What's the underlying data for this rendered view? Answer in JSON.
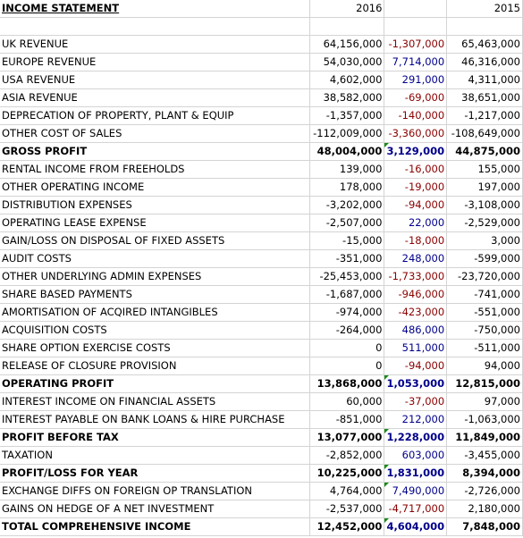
{
  "sheet": {
    "title": "INCOME STATEMENT",
    "year_current": "2016",
    "year_prior": "2015",
    "rows": [
      {
        "label": "UK REVENUE",
        "y2016": "64,156,000",
        "diff": "-1,307,000",
        "y2015": "65,463,000",
        "bold": false,
        "dir": "neg",
        "mark": false
      },
      {
        "label": "EUROPE REVENUE",
        "y2016": "54,030,000",
        "diff": "7,714,000",
        "y2015": "46,316,000",
        "bold": false,
        "dir": "pos",
        "mark": false
      },
      {
        "label": "USA REVENUE",
        "y2016": "4,602,000",
        "diff": "291,000",
        "y2015": "4,311,000",
        "bold": false,
        "dir": "pos",
        "mark": false
      },
      {
        "label": "ASIA REVENUE",
        "y2016": "38,582,000",
        "diff": "-69,000",
        "y2015": "38,651,000",
        "bold": false,
        "dir": "neg",
        "mark": false
      },
      {
        "label": "DEPRECATION OF PROPERTY, PLANT & EQUIP",
        "y2016": "-1,357,000",
        "diff": "-140,000",
        "y2015": "-1,217,000",
        "bold": false,
        "dir": "neg",
        "mark": false
      },
      {
        "label": "OTHER COST OF SALES",
        "y2016": "-112,009,000",
        "diff": "-3,360,000",
        "y2015": "-108,649,000",
        "bold": false,
        "dir": "neg",
        "mark": false
      },
      {
        "label": "GROSS PROFIT",
        "y2016": "48,004,000",
        "diff": "3,129,000",
        "y2015": "44,875,000",
        "bold": true,
        "dir": "pos",
        "mark": true
      },
      {
        "label": "RENTAL INCOME FROM FREEHOLDS",
        "y2016": "139,000",
        "diff": "-16,000",
        "y2015": "155,000",
        "bold": false,
        "dir": "neg",
        "mark": false
      },
      {
        "label": "OTHER OPERATING INCOME",
        "y2016": "178,000",
        "diff": "-19,000",
        "y2015": "197,000",
        "bold": false,
        "dir": "neg",
        "mark": false
      },
      {
        "label": "DISTRIBUTION EXPENSES",
        "y2016": "-3,202,000",
        "diff": "-94,000",
        "y2015": "-3,108,000",
        "bold": false,
        "dir": "neg",
        "mark": false
      },
      {
        "label": "OPERATING LEASE EXPENSE",
        "y2016": "-2,507,000",
        "diff": "22,000",
        "y2015": "-2,529,000",
        "bold": false,
        "dir": "pos",
        "mark": false
      },
      {
        "label": "GAIN/LOSS ON DISPOSAL OF FIXED ASSETS",
        "y2016": "-15,000",
        "diff": "-18,000",
        "y2015": "3,000",
        "bold": false,
        "dir": "neg",
        "mark": false
      },
      {
        "label": "AUDIT COSTS",
        "y2016": "-351,000",
        "diff": "248,000",
        "y2015": "-599,000",
        "bold": false,
        "dir": "pos",
        "mark": false
      },
      {
        "label": "OTHER UNDERLYING ADMIN EXPENSES",
        "y2016": "-25,453,000",
        "diff": "-1,733,000",
        "y2015": "-23,720,000",
        "bold": false,
        "dir": "neg",
        "mark": false
      },
      {
        "label": "SHARE BASED PAYMENTS",
        "y2016": "-1,687,000",
        "diff": "-946,000",
        "y2015": "-741,000",
        "bold": false,
        "dir": "neg",
        "mark": false
      },
      {
        "label": "AMORTISATION OF ACQIRED INTANGIBLES",
        "y2016": "-974,000",
        "diff": "-423,000",
        "y2015": "-551,000",
        "bold": false,
        "dir": "neg",
        "mark": false
      },
      {
        "label": "ACQUISITION COSTS",
        "y2016": "-264,000",
        "diff": "486,000",
        "y2015": "-750,000",
        "bold": false,
        "dir": "pos",
        "mark": false
      },
      {
        "label": "SHARE OPTION EXERCISE COSTS",
        "y2016": "0",
        "diff": "511,000",
        "y2015": "-511,000",
        "bold": false,
        "dir": "pos",
        "mark": false
      },
      {
        "label": "RELEASE OF CLOSURE PROVISION",
        "y2016": "0",
        "diff": "-94,000",
        "y2015": "94,000",
        "bold": false,
        "dir": "neg",
        "mark": false
      },
      {
        "label": "OPERATING PROFIT",
        "y2016": "13,868,000",
        "diff": "1,053,000",
        "y2015": "12,815,000",
        "bold": true,
        "dir": "pos",
        "mark": true
      },
      {
        "label": "INTEREST INCOME ON FINANCIAL ASSETS",
        "y2016": "60,000",
        "diff": "-37,000",
        "y2015": "97,000",
        "bold": false,
        "dir": "neg",
        "mark": false
      },
      {
        "label": "INTEREST PAYABLE ON BANK LOANS & HIRE PURCHASE",
        "y2016": "-851,000",
        "diff": "212,000",
        "y2015": "-1,063,000",
        "bold": false,
        "dir": "pos",
        "mark": false
      },
      {
        "label": "PROFIT BEFORE TAX",
        "y2016": "13,077,000",
        "diff": "1,228,000",
        "y2015": "11,849,000",
        "bold": true,
        "dir": "pos",
        "mark": true
      },
      {
        "label": "TAXATION",
        "y2016": "-2,852,000",
        "diff": "603,000",
        "y2015": "-3,455,000",
        "bold": false,
        "dir": "pos",
        "mark": false
      },
      {
        "label": "PROFIT/LOSS FOR YEAR",
        "y2016": "10,225,000",
        "diff": "1,831,000",
        "y2015": "8,394,000",
        "bold": true,
        "dir": "pos",
        "mark": true
      },
      {
        "label": "EXCHANGE DIFFS ON FOREIGN OP TRANSLATION",
        "y2016": "4,764,000",
        "diff": "7,490,000",
        "y2015": "-2,726,000",
        "bold": false,
        "dir": "pos",
        "mark": true
      },
      {
        "label": "GAINS ON HEDGE OF A NET INVESTMENT",
        "y2016": "-2,537,000",
        "diff": "-4,717,000",
        "y2015": "2,180,000",
        "bold": false,
        "dir": "neg",
        "mark": false
      },
      {
        "label": "TOTAL COMPREHENSIVE INCOME",
        "y2016": "12,452,000",
        "diff": "4,604,000",
        "y2015": "7,848,000",
        "bold": true,
        "dir": "pos",
        "mark": true
      }
    ]
  },
  "colors": {
    "negative_diff": "#8b0000",
    "positive_diff": "#00008b",
    "gridline": "#d4d4d4",
    "marker": "#1a8a1a"
  }
}
